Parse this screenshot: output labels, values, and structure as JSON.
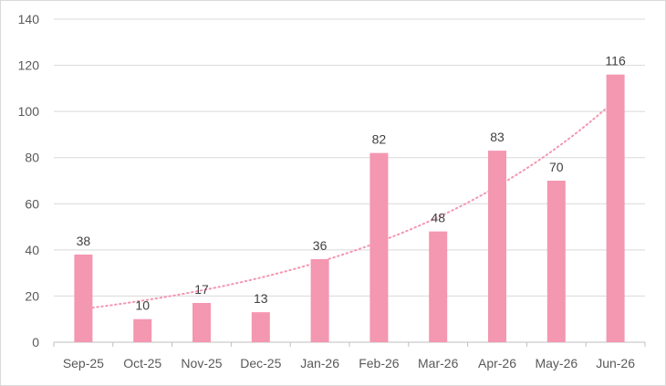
{
  "chart_data": {
    "type": "bar",
    "categories": [
      "Sep-25",
      "Oct-25",
      "Nov-25",
      "Dec-25",
      "Jan-26",
      "Feb-26",
      "Mar-26",
      "Apr-26",
      "May-26",
      "Jun-26"
    ],
    "values": [
      38,
      10,
      17,
      13,
      36,
      82,
      48,
      83,
      70,
      116
    ],
    "data_labels": [
      "38",
      "10",
      "17",
      "13",
      "36",
      "82",
      "48",
      "83",
      "70",
      "116"
    ],
    "y_ticks": [
      "0",
      "20",
      "40",
      "60",
      "80",
      "100",
      "120",
      "140"
    ],
    "ylim": [
      0,
      140
    ],
    "grid": true,
    "legend": "none",
    "trendline": {
      "type": "exponential",
      "style": "dotted"
    },
    "colors": {
      "bar": "#f497b1",
      "trend": "#f497b1",
      "grid": "#d9d9d9",
      "axis": "#bfbfbf"
    }
  }
}
